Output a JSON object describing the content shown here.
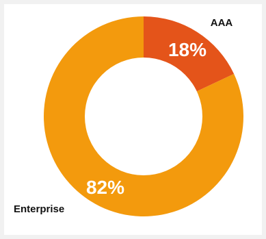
{
  "chart_data": {
    "type": "pie",
    "categories": [
      "AAA",
      "Enterprise"
    ],
    "values": [
      18,
      82
    ],
    "value_labels": [
      "18%",
      "82%"
    ],
    "colors": [
      "#e4541a",
      "#f39a0d"
    ],
    "title": "",
    "legend": "none"
  }
}
